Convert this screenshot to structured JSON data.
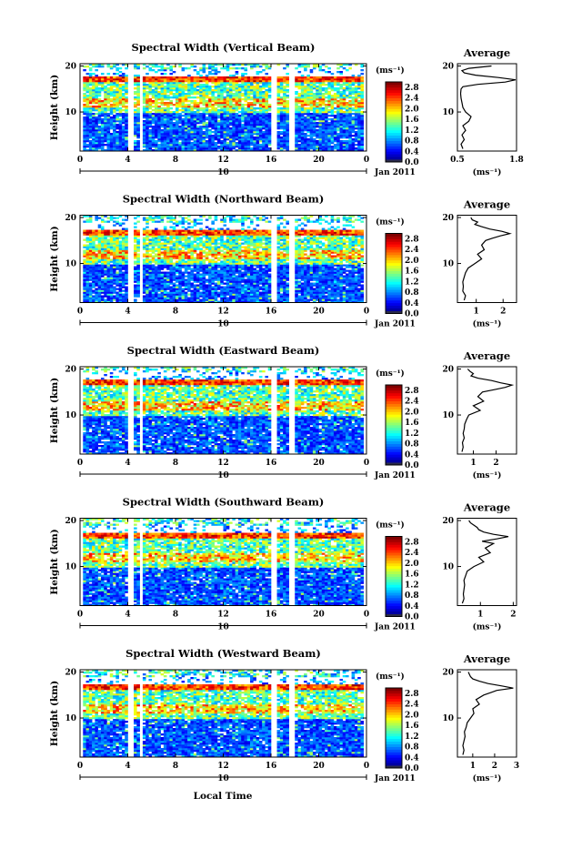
{
  "figure": {
    "xlabel": "Local Time",
    "time_ticks": [
      "0",
      "4",
      "8",
      "12",
      "16",
      "20",
      "0"
    ],
    "date_marker": "10",
    "date_label": "Jan 2011",
    "ylabel": "Height (km)",
    "height_ticks": [
      "20",
      "10"
    ],
    "colorbar_unit": "(ms⁻¹)",
    "colorbar_ticks": [
      "2.8",
      "2.4",
      "2.0",
      "1.6",
      "1.2",
      "0.8",
      "0.4",
      "0.0"
    ],
    "avg_title": "Average",
    "avg_xlabel": "(ms⁻¹)"
  },
  "chart_data": [
    {
      "type": "heatmap",
      "title": "Spectral Width (Vertical Beam)",
      "xlabel": "Local Time",
      "ylabel": "Height (km)",
      "xlim": [
        0,
        24
      ],
      "ylim": [
        1.5,
        20.5
      ],
      "clim": [
        0.0,
        3.0
      ],
      "data_gaps_hours": [
        [
          4.0,
          4.4
        ],
        [
          5.0,
          5.3
        ],
        [
          16.0,
          16.5
        ],
        [
          17.6,
          17.9
        ]
      ],
      "tropopause_km": 17.0,
      "average_profile": {
        "xlim": [
          0.5,
          1.8
        ],
        "ticks": [
          "0.5",
          "1.8"
        ],
        "height_km": [
          2,
          3,
          4,
          5,
          6,
          7,
          8,
          9,
          10,
          11,
          12,
          13,
          14,
          15,
          15.5,
          16,
          16.5,
          17,
          17.5,
          18,
          18.5,
          19,
          19.5,
          20
        ],
        "value": [
          0.62,
          0.58,
          0.65,
          0.6,
          0.68,
          0.62,
          0.75,
          0.8,
          0.68,
          0.62,
          0.6,
          0.58,
          0.57,
          0.58,
          0.62,
          0.95,
          1.55,
          1.78,
          1.4,
          0.9,
          0.65,
          0.6,
          0.75,
          1.25
        ]
      }
    },
    {
      "type": "heatmap",
      "title": "Spectral Width (Northward Beam)",
      "xlabel": "Local Time",
      "ylabel": "Height (km)",
      "xlim": [
        0,
        24
      ],
      "ylim": [
        1.5,
        20.5
      ],
      "clim": [
        0.0,
        3.0
      ],
      "data_gaps_hours": [
        [
          4.0,
          4.4
        ],
        [
          5.0,
          5.3
        ],
        [
          16.0,
          16.5
        ],
        [
          17.6,
          17.9
        ]
      ],
      "tropopause_km": 16.8,
      "average_profile": {
        "xlim": [
          0.3,
          2.5
        ],
        "ticks": [
          "1",
          "2"
        ],
        "height_km": [
          2,
          3,
          4,
          5,
          6,
          7,
          8,
          9,
          10,
          11,
          12,
          13,
          14,
          15,
          15.5,
          16,
          16.5,
          17,
          17.5,
          18,
          18.5,
          19,
          19.5,
          20
        ],
        "value": [
          0.55,
          0.6,
          0.5,
          0.52,
          0.5,
          0.55,
          0.6,
          0.7,
          0.95,
          1.2,
          1.05,
          1.3,
          1.2,
          1.35,
          1.6,
          1.9,
          2.25,
          1.95,
          1.5,
          1.2,
          0.95,
          1.05,
          0.85,
          0.8
        ]
      }
    },
    {
      "type": "heatmap",
      "title": "Spectral Width (Eastward Beam)",
      "xlabel": "Local Time",
      "ylabel": "Height (km)",
      "xlim": [
        0,
        24
      ],
      "ylim": [
        1.5,
        20.5
      ],
      "clim": [
        0.0,
        3.0
      ],
      "data_gaps_hours": [
        [
          4.0,
          4.4
        ],
        [
          5.0,
          5.3
        ],
        [
          16.0,
          16.5
        ],
        [
          17.6,
          17.9
        ]
      ],
      "tropopause_km": 17.0,
      "average_profile": {
        "xlim": [
          0.3,
          2.9
        ],
        "ticks": [
          "1",
          "2"
        ],
        "height_km": [
          2,
          3,
          4,
          5,
          6,
          7,
          8,
          9,
          10,
          11,
          12,
          13,
          14,
          15,
          15.5,
          16,
          16.5,
          17,
          17.5,
          18,
          18.5,
          19,
          19.5,
          20
        ],
        "value": [
          0.5,
          0.55,
          0.52,
          0.6,
          0.55,
          0.6,
          0.62,
          0.7,
          0.8,
          1.3,
          1.0,
          1.45,
          1.2,
          1.4,
          1.9,
          2.4,
          2.7,
          2.2,
          1.8,
          1.2,
          0.9,
          1.0,
          0.85,
          0.75
        ]
      }
    },
    {
      "type": "heatmap",
      "title": "Spectral Width (Southward Beam)",
      "xlabel": "Local Time",
      "ylabel": "Height (km)",
      "xlim": [
        0,
        24
      ],
      "ylim": [
        1.5,
        20.5
      ],
      "clim": [
        0.0,
        3.0
      ],
      "data_gaps_hours": [
        [
          4.0,
          4.4
        ],
        [
          5.0,
          5.3
        ],
        [
          16.0,
          16.5
        ],
        [
          17.6,
          17.9
        ]
      ],
      "tropopause_km": 16.8,
      "average_profile": {
        "xlim": [
          0.3,
          2.1
        ],
        "ticks": [
          "1",
          "2"
        ],
        "height_km": [
          2,
          3,
          4,
          5,
          6,
          7,
          8,
          9,
          10,
          11,
          12,
          13,
          14,
          15,
          15.5,
          16,
          16.5,
          17,
          17.5,
          18,
          18.5,
          19,
          19.5,
          20
        ],
        "value": [
          0.45,
          0.5,
          0.48,
          0.5,
          0.52,
          0.5,
          0.55,
          0.6,
          0.8,
          1.1,
          0.95,
          1.3,
          1.15,
          1.4,
          1.05,
          1.5,
          1.85,
          1.4,
          1.1,
          0.95,
          0.9,
          0.8,
          0.7,
          0.65
        ]
      }
    },
    {
      "type": "heatmap",
      "title": "Spectral Width (Westward Beam)",
      "xlabel": "Local Time",
      "ylabel": "Height (km)",
      "xlim": [
        0,
        24
      ],
      "ylim": [
        1.5,
        20.5
      ],
      "clim": [
        0.0,
        3.0
      ],
      "data_gaps_hours": [
        [
          4.0,
          4.4
        ],
        [
          5.0,
          5.3
        ],
        [
          16.0,
          16.5
        ],
        [
          17.6,
          17.9
        ]
      ],
      "tropopause_km": 16.9,
      "average_profile": {
        "xlim": [
          0.3,
          3.0
        ],
        "ticks": [
          "1",
          "2",
          "3"
        ],
        "height_km": [
          2,
          3,
          4,
          5,
          6,
          7,
          8,
          9,
          10,
          11,
          12,
          13,
          14,
          15,
          15.5,
          16,
          16.5,
          17,
          17.5,
          18,
          18.5,
          19,
          19.5,
          20
        ],
        "value": [
          0.55,
          0.6,
          0.55,
          0.6,
          0.65,
          0.62,
          0.7,
          0.75,
          0.9,
          1.05,
          1.0,
          1.3,
          1.15,
          1.5,
          1.8,
          2.1,
          2.85,
          2.3,
          1.7,
          1.3,
          1.0,
          0.9,
          0.85,
          0.8
        ]
      }
    }
  ]
}
